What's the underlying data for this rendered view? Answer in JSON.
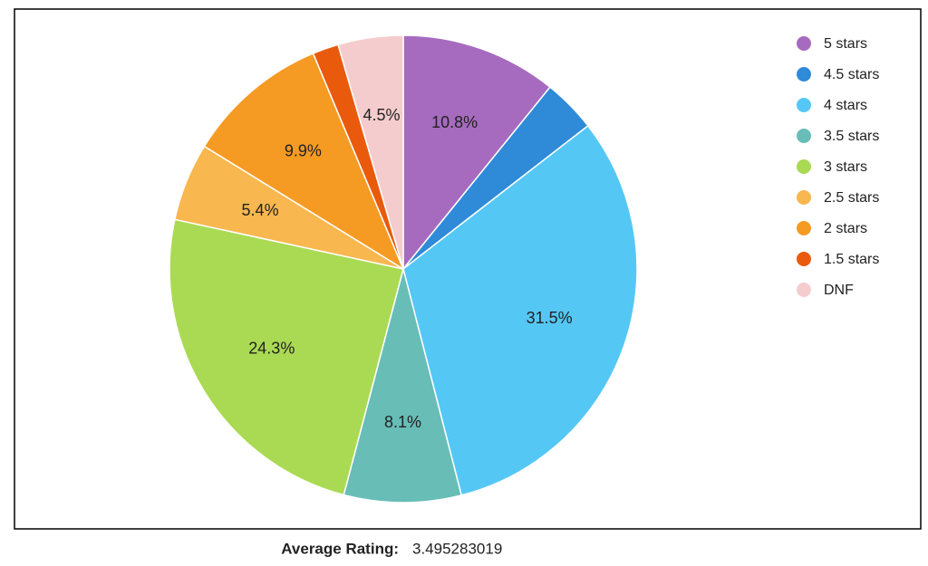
{
  "chart_data": {
    "type": "pie",
    "categories": [
      "5 stars",
      "4.5 stars",
      "4 stars",
      "3.5 stars",
      "3 stars",
      "2.5 stars",
      "2 stars",
      "1.5 stars",
      "DNF"
    ],
    "values": [
      10.8,
      3.7,
      31.5,
      8.1,
      24.3,
      5.4,
      9.9,
      1.8,
      4.5
    ],
    "value_labels": [
      "10.8%",
      null,
      "31.5%",
      "8.1%",
      "24.3%",
      "5.4%",
      "9.9%",
      null,
      "4.5%"
    ],
    "colors": [
      "#a66bbe",
      "#2f8ad8",
      "#55c7f5",
      "#68bdb7",
      "#aada53",
      "#f8b74f",
      "#f59b23",
      "#ea5a0c",
      "#f5cccd"
    ],
    "legend": "right"
  },
  "footer": {
    "label": "Average Rating:",
    "value": 3.495283019
  }
}
